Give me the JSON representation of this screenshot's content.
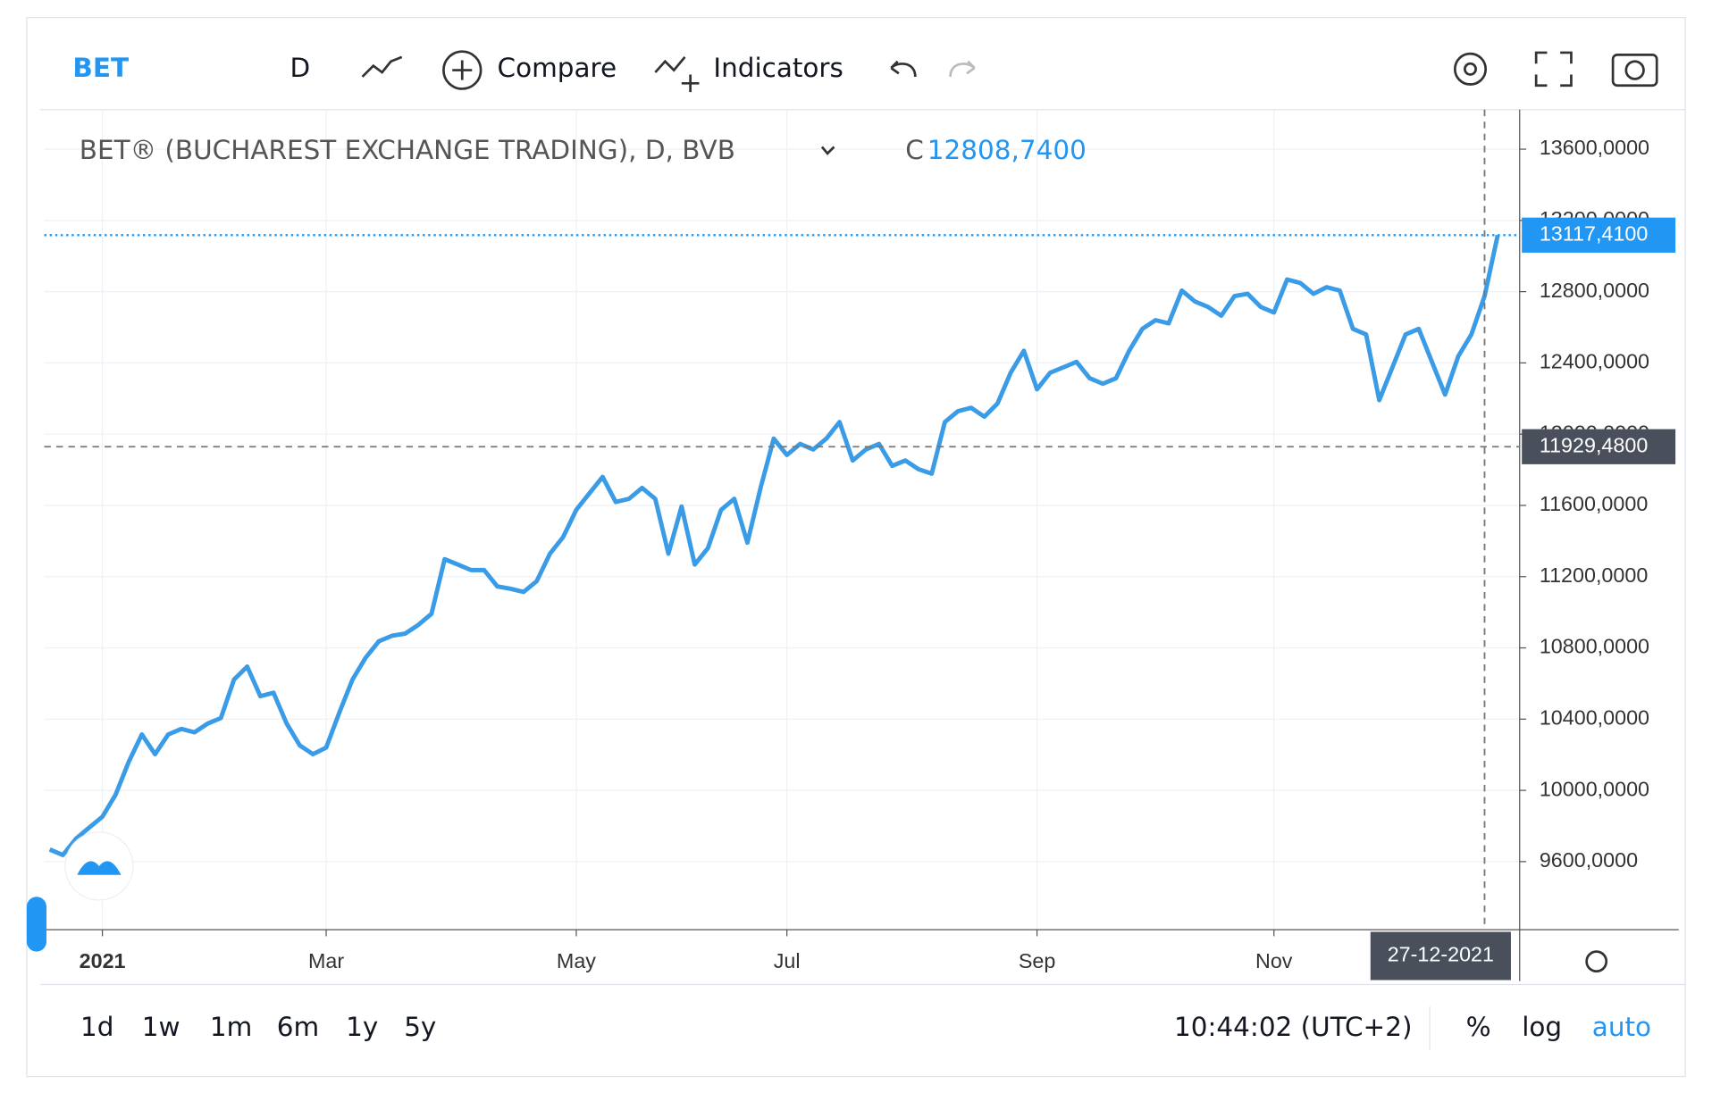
{
  "toolbar": {
    "symbol": "BET",
    "interval": "D",
    "compare": "Compare",
    "indicators": "Indicators"
  },
  "chart_data": {
    "type": "line",
    "title": "BET® (BUCHAREST EXCHANGE TRADING), D, BVB",
    "close_prefix": "C",
    "close": "12808,7400",
    "categories": [
      null,
      null,
      null,
      null,
      "2021",
      null,
      null,
      null,
      null,
      null,
      null,
      null,
      null,
      null,
      null,
      null,
      null,
      null,
      null,
      null,
      null,
      "Mar",
      null,
      null,
      null,
      null,
      null,
      null,
      null,
      null,
      null,
      null,
      null,
      null,
      null,
      null,
      null,
      null,
      null,
      null,
      "May",
      null,
      null,
      null,
      null,
      null,
      null,
      null,
      null,
      null,
      null,
      null,
      null,
      null,
      null,
      null,
      "Jul",
      null,
      null,
      null,
      null,
      null,
      null,
      null,
      null,
      null,
      null,
      null,
      null,
      null,
      null,
      null,
      null,
      null,
      null,
      "Sep",
      null,
      null,
      null,
      null,
      null,
      null,
      null,
      null,
      null,
      null,
      null,
      null,
      null,
      null,
      null,
      null,
      null,
      "Nov",
      null,
      null,
      null,
      null,
      null,
      null,
      null,
      null,
      null,
      null,
      null,
      null,
      null,
      null,
      null,
      null,
      null
    ],
    "series": [
      {
        "name": "BET",
        "color": "#3a9be6",
        "values": [
          9668,
          9637,
          9729,
          9791,
          9852,
          9975,
          10160,
          10314,
          10203,
          10314,
          10345,
          10326,
          10375,
          10406,
          10622,
          10695,
          10529,
          10548,
          10375,
          10252,
          10203,
          10240,
          10437,
          10622,
          10745,
          10837,
          10868,
          10880,
          10929,
          10991,
          11298,
          11268,
          11237,
          11237,
          11145,
          11132,
          11114,
          11175,
          11329,
          11422,
          11575,
          11668,
          11760,
          11619,
          11637,
          11698,
          11637,
          11329,
          11594,
          11268,
          11360,
          11575,
          11637,
          11391,
          11698,
          11975,
          11883,
          11945,
          11914,
          11975,
          12068,
          11852,
          11914,
          11945,
          11822,
          11852,
          11803,
          11778,
          12068,
          12129,
          12148,
          12098,
          12172,
          12345,
          12468,
          12252,
          12345,
          12375,
          12406,
          12314,
          12283,
          12314,
          12468,
          12591,
          12640,
          12622,
          12806,
          12745,
          12714,
          12665,
          12775,
          12788,
          12714,
          12683,
          12868,
          12849,
          12788,
          12825,
          12806,
          12591,
          12560,
          12191,
          12375,
          12560,
          12591,
          12406,
          12222,
          12437,
          12560,
          12775,
          13117.41
        ]
      }
    ],
    "ylim": [
      9218,
      13822
    ],
    "yticks": [
      {
        "value": 9600,
        "label": "9600,0000"
      },
      {
        "value": 10000,
        "label": "10000,0000"
      },
      {
        "value": 10400,
        "label": "10400,0000"
      },
      {
        "value": 10800,
        "label": "10800,0000"
      },
      {
        "value": 11200,
        "label": "11200,0000"
      },
      {
        "value": 11600,
        "label": "11600,0000"
      },
      {
        "value": 12000,
        "label": "12000,0000"
      },
      {
        "value": 12400,
        "label": "12400,0000"
      },
      {
        "value": 12800,
        "label": "12800,0000"
      },
      {
        "value": 13200,
        "label": "13200,0000"
      },
      {
        "value": 13600,
        "label": "13600,0000"
      }
    ],
    "grid": true,
    "last_price": {
      "value": 13117.41,
      "label": "13117,4100",
      "color": "#2196f3"
    },
    "crosshair": {
      "value": 11929.48,
      "label": "11929,4800",
      "date": "27-12-2021"
    }
  },
  "bottom_bar": {
    "ranges": [
      "1d",
      "1w",
      "1m",
      "6m",
      "1y",
      "5y"
    ],
    "time": "10:44:02 (UTC+2)",
    "percent": "%",
    "log": "log",
    "auto": "auto"
  }
}
